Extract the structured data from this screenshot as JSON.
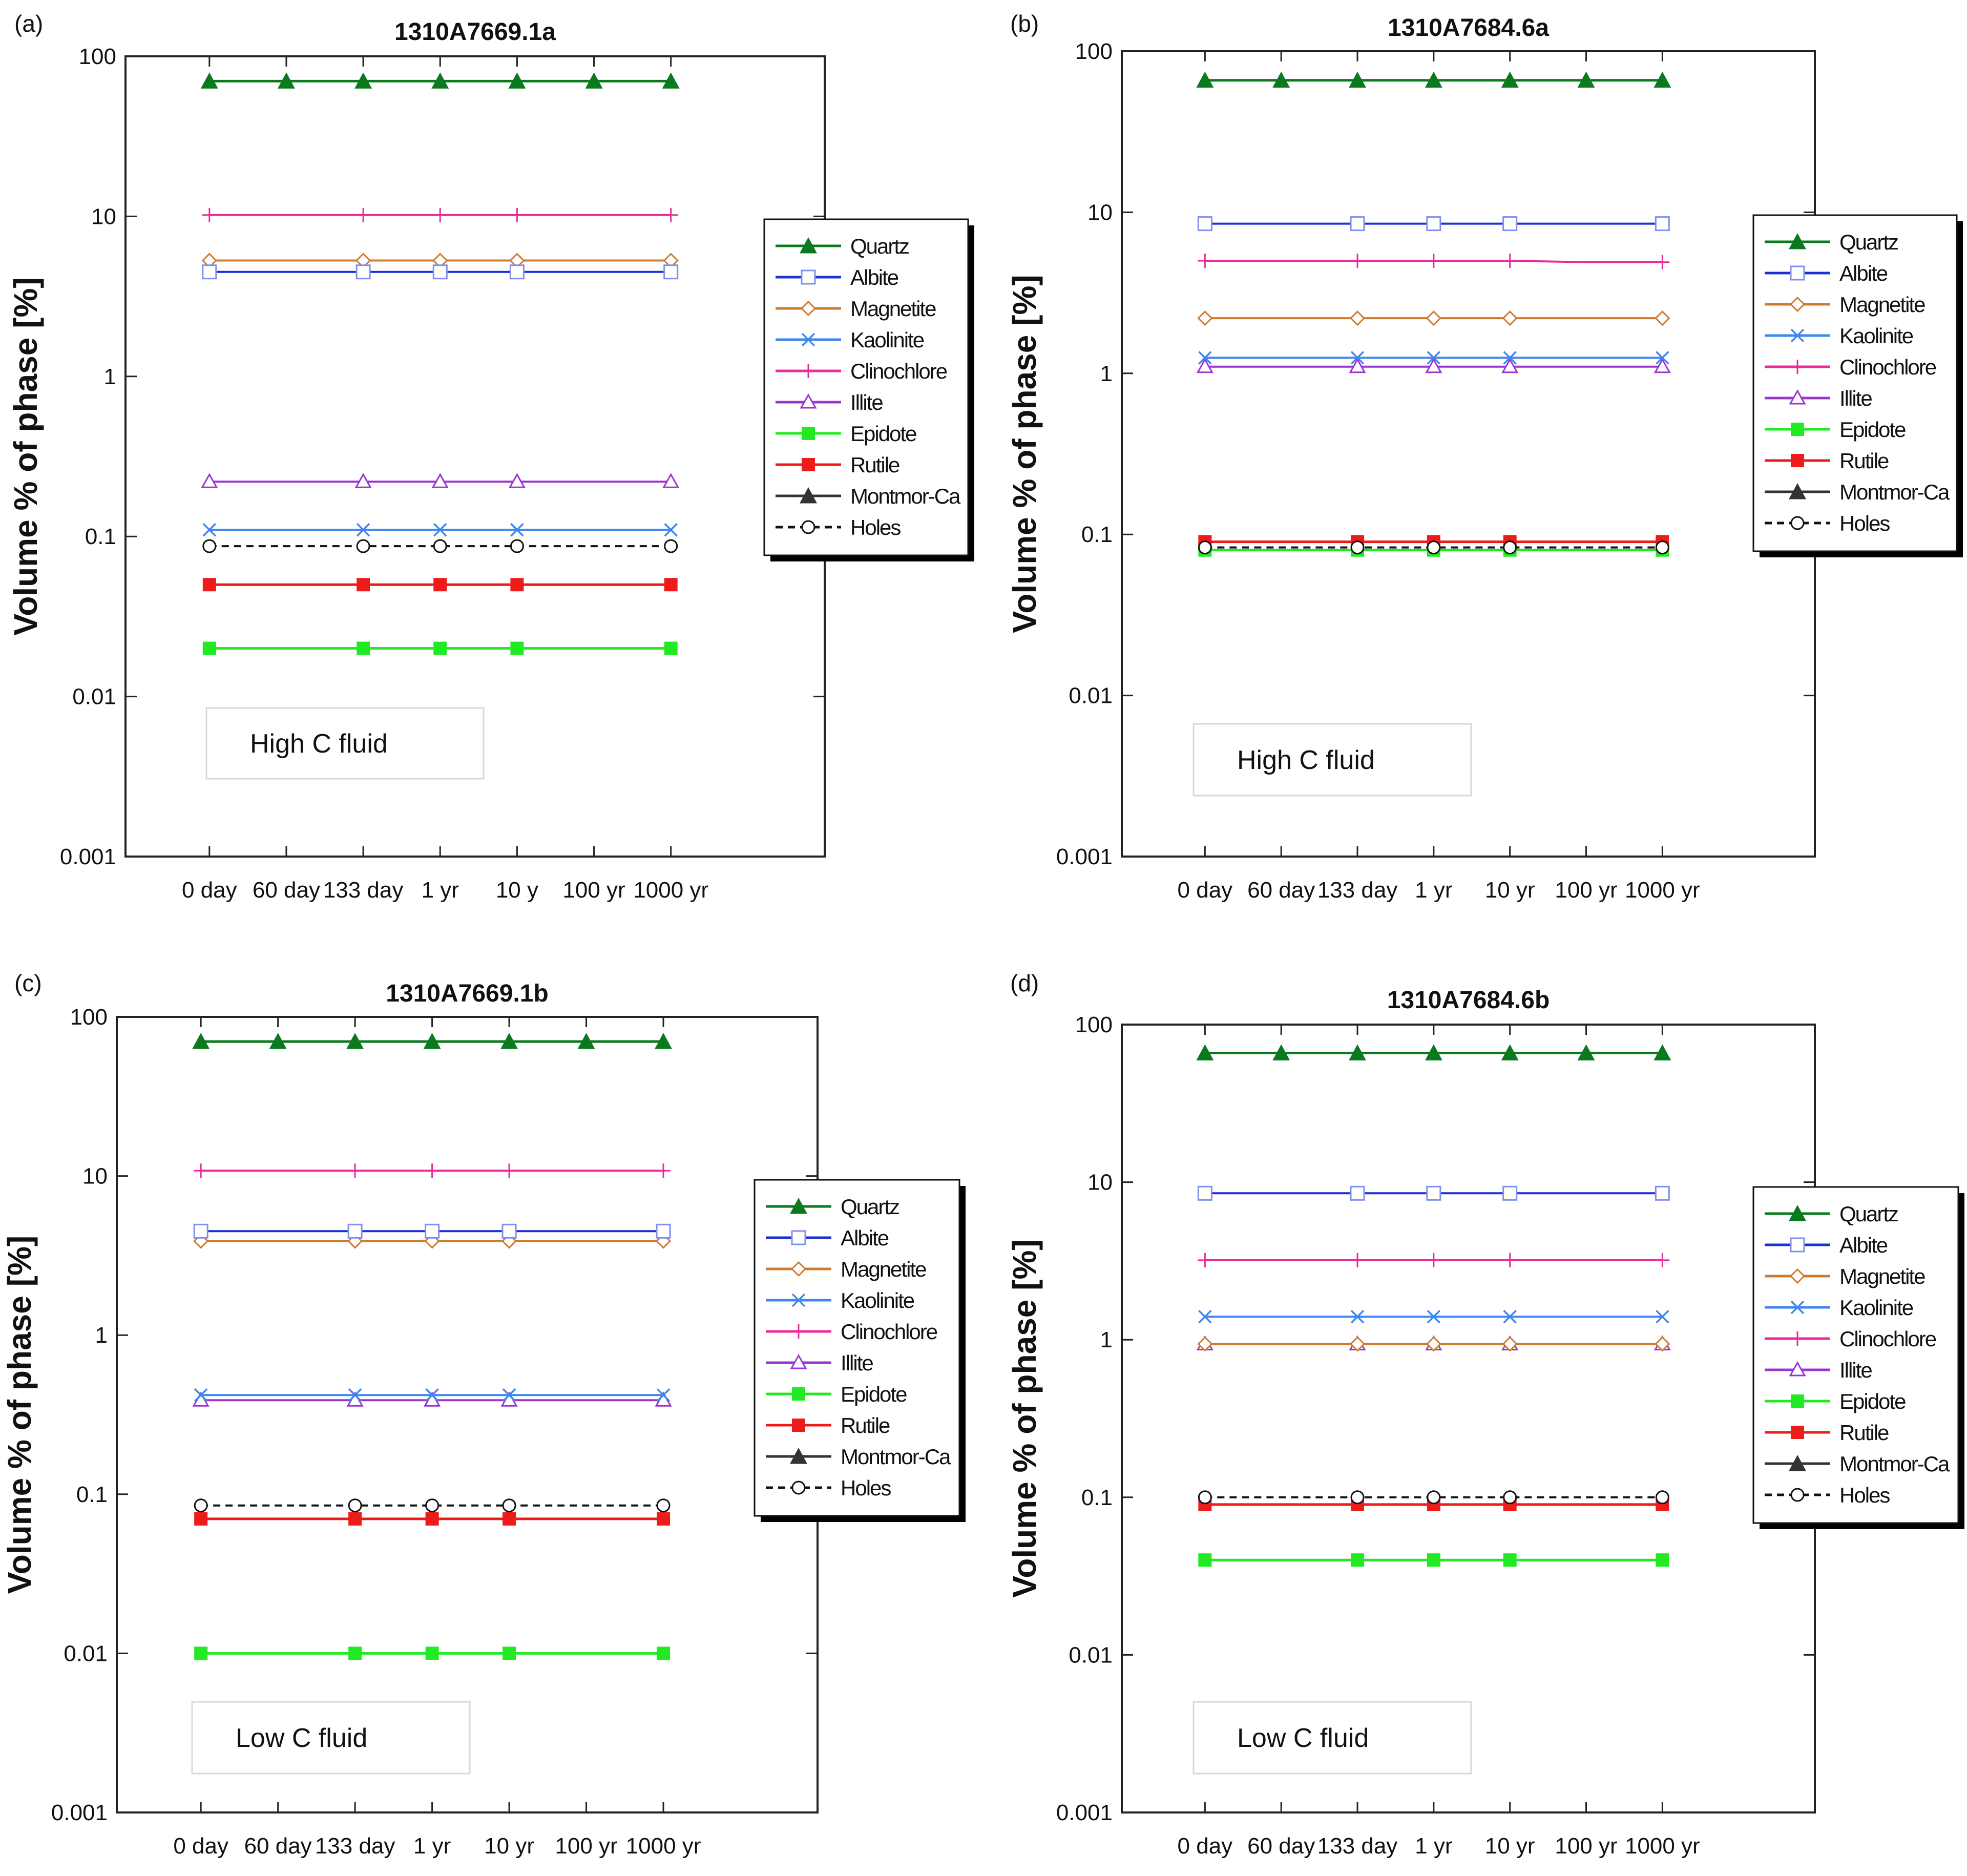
{
  "ylabel": "Volume % of phase [%]",
  "yticks": [
    "0.001",
    "0.01",
    "0.1",
    "1",
    "10",
    "100"
  ],
  "xticks": [
    "0 day",
    "60 day",
    "133 day",
    "1 yr",
    "10 y",
    "100 yr",
    "1000 yr"
  ],
  "legend_phases": [
    "Quartz",
    "Albite",
    "Magnetite",
    "Kaolinite",
    "Clinochlore",
    "Illite",
    "Epidote",
    "Rutile",
    "Montmor-Ca",
    "Holes"
  ],
  "colors": {
    "Quartz": "#0b7a1f",
    "Albite": "#1b2fd6",
    "Magnetite": "#d07b2c",
    "Kaolinite": "#3f86f0",
    "Clinochlore": "#ee2a9a",
    "Illite": "#9b35d1",
    "Epidote": "#22ea22",
    "Rutile": "#ee1b1b",
    "Montmor-Ca": "#333333",
    "Holes": "#111111"
  },
  "chart_data": [
    {
      "type": "line",
      "panel": "(a)",
      "title": "1310A7669.1a",
      "annotation": "High C fluid",
      "xlabel": "",
      "ylabel": "Volume % of phase [%]",
      "yscale": "log",
      "ylim": [
        0.001,
        100
      ],
      "categories": [
        "0 day",
        "60 day",
        "133 day",
        "1 yr",
        "10 y",
        "100 yr",
        "1000 yr"
      ],
      "series": [
        {
          "name": "Quartz",
          "values": [
            70,
            70,
            70,
            70,
            70,
            70,
            70
          ],
          "markers": [
            0,
            1,
            2,
            3,
            4,
            5,
            6
          ]
        },
        {
          "name": "Albite",
          "values": [
            4.5,
            4.5,
            4.5,
            4.5,
            4.5,
            4.5,
            4.5
          ],
          "markers": [
            0,
            2,
            3,
            4,
            6
          ]
        },
        {
          "name": "Magnetite",
          "values": [
            5.3,
            5.3,
            5.3,
            5.3,
            5.3,
            5.3,
            5.3
          ],
          "markers": [
            0,
            2,
            3,
            4,
            6
          ]
        },
        {
          "name": "Kaolinite",
          "values": [
            0.11,
            0.11,
            0.11,
            0.11,
            0.11,
            0.11,
            0.11
          ],
          "markers": [
            0,
            2,
            3,
            4,
            6
          ]
        },
        {
          "name": "Clinochlore",
          "values": [
            10.2,
            10.2,
            10.2,
            10.2,
            10.2,
            10.2,
            10.2
          ],
          "markers": [
            0,
            2,
            3,
            4,
            6
          ]
        },
        {
          "name": "Illite",
          "values": [
            0.22,
            0.22,
            0.22,
            0.22,
            0.22,
            0.22,
            0.22
          ],
          "markers": [
            0,
            2,
            3,
            4,
            6
          ]
        },
        {
          "name": "Epidote",
          "values": [
            0.02,
            0.02,
            0.02,
            0.02,
            0.02,
            0.02,
            0.02
          ],
          "markers": [
            0,
            2,
            3,
            4,
            6
          ]
        },
        {
          "name": "Rutile",
          "values": [
            0.05,
            0.05,
            0.05,
            0.05,
            0.05,
            0.05,
            0.05
          ],
          "markers": [
            0,
            2,
            3,
            4,
            6
          ]
        },
        {
          "name": "Holes",
          "values": [
            0.087,
            0.087,
            0.087,
            0.087,
            0.087,
            0.087,
            0.087
          ],
          "markers": [
            0,
            2,
            3,
            4,
            6
          ]
        }
      ]
    },
    {
      "type": "line",
      "panel": "(b)",
      "title": "1310A7684.6a",
      "annotation": "High C fluid",
      "xlabel": "",
      "ylabel": "Volume % of phase [%]",
      "yscale": "log",
      "ylim": [
        0.001,
        100
      ],
      "categories": [
        "0 day",
        "60 day",
        "133 day",
        "1 yr",
        "10 yr",
        "100 yr",
        "1000 yr"
      ],
      "series": [
        {
          "name": "Quartz",
          "values": [
            66,
            66,
            66,
            66,
            66,
            66,
            66
          ],
          "markers": [
            0,
            1,
            2,
            3,
            4,
            5,
            6
          ]
        },
        {
          "name": "Albite",
          "values": [
            8.5,
            8.5,
            8.5,
            8.5,
            8.5,
            8.5,
            8.5
          ],
          "markers": [
            0,
            2,
            3,
            4,
            6
          ]
        },
        {
          "name": "Magnetite",
          "values": [
            2.2,
            2.2,
            2.2,
            2.2,
            2.2,
            2.2,
            2.2
          ],
          "markers": [
            0,
            2,
            3,
            4,
            6
          ]
        },
        {
          "name": "Kaolinite",
          "values": [
            1.25,
            1.25,
            1.25,
            1.25,
            1.25,
            1.25,
            1.25
          ],
          "markers": [
            0,
            2,
            3,
            4,
            6
          ]
        },
        {
          "name": "Clinochlore",
          "values": [
            5.0,
            5.0,
            5.0,
            5.0,
            5.0,
            4.9,
            4.9
          ],
          "markers": [
            0,
            2,
            3,
            4,
            6
          ]
        },
        {
          "name": "Illite",
          "values": [
            1.1,
            1.1,
            1.1,
            1.1,
            1.1,
            1.1,
            1.1
          ],
          "markers": [
            0,
            2,
            3,
            4,
            6
          ]
        },
        {
          "name": "Epidote",
          "values": [
            0.08,
            0.08,
            0.08,
            0.08,
            0.08,
            0.08,
            0.08
          ],
          "markers": [
            0,
            2,
            3,
            4,
            6
          ]
        },
        {
          "name": "Rutile",
          "values": [
            0.09,
            0.09,
            0.09,
            0.09,
            0.09,
            0.09,
            0.09
          ],
          "markers": [
            0,
            2,
            3,
            4,
            6
          ]
        },
        {
          "name": "Holes",
          "values": [
            0.083,
            0.083,
            0.083,
            0.083,
            0.083,
            0.083,
            0.083
          ],
          "markers": [
            0,
            2,
            3,
            4,
            6
          ]
        }
      ]
    },
    {
      "type": "line",
      "panel": "(c)",
      "title": "1310A7669.1b",
      "annotation": "Low C fluid",
      "xlabel": "",
      "ylabel": "Volume % of phase [%]",
      "yscale": "log",
      "ylim": [
        0.001,
        100
      ],
      "categories": [
        "0 day",
        "60 day",
        "133 day",
        "1 yr",
        "10 yr",
        "100 yr",
        "1000 yr"
      ],
      "series": [
        {
          "name": "Quartz",
          "values": [
            70,
            70,
            70,
            70,
            70,
            70,
            70
          ],
          "markers": [
            0,
            1,
            2,
            3,
            4,
            5,
            6
          ]
        },
        {
          "name": "Albite",
          "values": [
            4.5,
            4.5,
            4.5,
            4.5,
            4.5,
            4.5,
            4.5
          ],
          "markers": [
            0,
            2,
            3,
            4,
            6
          ]
        },
        {
          "name": "Magnetite",
          "values": [
            3.9,
            3.9,
            3.9,
            3.9,
            3.9,
            3.9,
            3.9
          ],
          "markers": [
            0,
            2,
            3,
            4,
            6
          ]
        },
        {
          "name": "Kaolinite",
          "values": [
            0.42,
            0.42,
            0.42,
            0.42,
            0.42,
            0.42,
            0.42
          ],
          "markers": [
            0,
            2,
            3,
            4,
            6
          ]
        },
        {
          "name": "Clinochlore",
          "values": [
            10.8,
            10.8,
            10.8,
            10.8,
            10.8,
            10.8,
            10.8
          ],
          "markers": [
            0,
            2,
            3,
            4,
            6
          ]
        },
        {
          "name": "Illite",
          "values": [
            0.39,
            0.39,
            0.39,
            0.39,
            0.39,
            0.39,
            0.39
          ],
          "markers": [
            0,
            2,
            3,
            4,
            6
          ]
        },
        {
          "name": "Epidote",
          "values": [
            0.01,
            0.01,
            0.01,
            0.01,
            0.01,
            0.01,
            0.01
          ],
          "markers": [
            0,
            2,
            3,
            4,
            6
          ]
        },
        {
          "name": "Rutile",
          "values": [
            0.07,
            0.07,
            0.07,
            0.07,
            0.07,
            0.07,
            0.07
          ],
          "markers": [
            0,
            2,
            3,
            4,
            6
          ]
        },
        {
          "name": "Holes",
          "values": [
            0.085,
            0.085,
            0.085,
            0.085,
            0.085,
            0.085,
            0.085
          ],
          "markers": [
            0,
            2,
            3,
            4,
            6
          ]
        }
      ]
    },
    {
      "type": "line",
      "panel": "(d)",
      "title": "1310A7684.6b",
      "annotation": "Low C fluid",
      "xlabel": "",
      "ylabel": "Volume % of phase [%]",
      "yscale": "log",
      "ylim": [
        0.001,
        100
      ],
      "categories": [
        "0 day",
        "60 day",
        "133 day",
        "1 yr",
        "10 yr",
        "100 yr",
        "1000 yr"
      ],
      "series": [
        {
          "name": "Quartz",
          "values": [
            66,
            66,
            66,
            66,
            66,
            66,
            66
          ],
          "markers": [
            0,
            1,
            2,
            3,
            4,
            5,
            6
          ]
        },
        {
          "name": "Albite",
          "values": [
            8.5,
            8.5,
            8.5,
            8.5,
            8.5,
            8.5,
            8.5
          ],
          "markers": [
            0,
            2,
            3,
            4,
            6
          ]
        },
        {
          "name": "Magnetite",
          "values": [
            0.94,
            0.94,
            0.94,
            0.94,
            0.94,
            0.94,
            0.94
          ],
          "markers": [
            0,
            2,
            3,
            4,
            6
          ]
        },
        {
          "name": "Kaolinite",
          "values": [
            1.4,
            1.4,
            1.4,
            1.4,
            1.4,
            1.4,
            1.4
          ],
          "markers": [
            0,
            2,
            3,
            4,
            6
          ]
        },
        {
          "name": "Clinochlore",
          "values": [
            3.2,
            3.2,
            3.2,
            3.2,
            3.2,
            3.2,
            3.2
          ],
          "markers": [
            0,
            2,
            3,
            4,
            6
          ]
        },
        {
          "name": "Illite",
          "values": [
            0.94,
            0.94,
            0.94,
            0.94,
            0.94,
            0.94,
            0.94
          ],
          "markers": [
            0,
            2,
            3,
            4,
            6
          ]
        },
        {
          "name": "Epidote",
          "values": [
            0.04,
            0.04,
            0.04,
            0.04,
            0.04,
            0.04,
            0.04
          ],
          "markers": [
            0,
            2,
            3,
            4,
            6
          ]
        },
        {
          "name": "Rutile",
          "values": [
            0.09,
            0.09,
            0.09,
            0.09,
            0.09,
            0.09,
            0.09
          ],
          "markers": [
            0,
            2,
            3,
            4,
            6
          ]
        },
        {
          "name": "Holes",
          "values": [
            0.1,
            0.1,
            0.1,
            0.1,
            0.1,
            0.1,
            0.1
          ],
          "markers": [
            0,
            2,
            3,
            4,
            6
          ]
        }
      ]
    }
  ]
}
